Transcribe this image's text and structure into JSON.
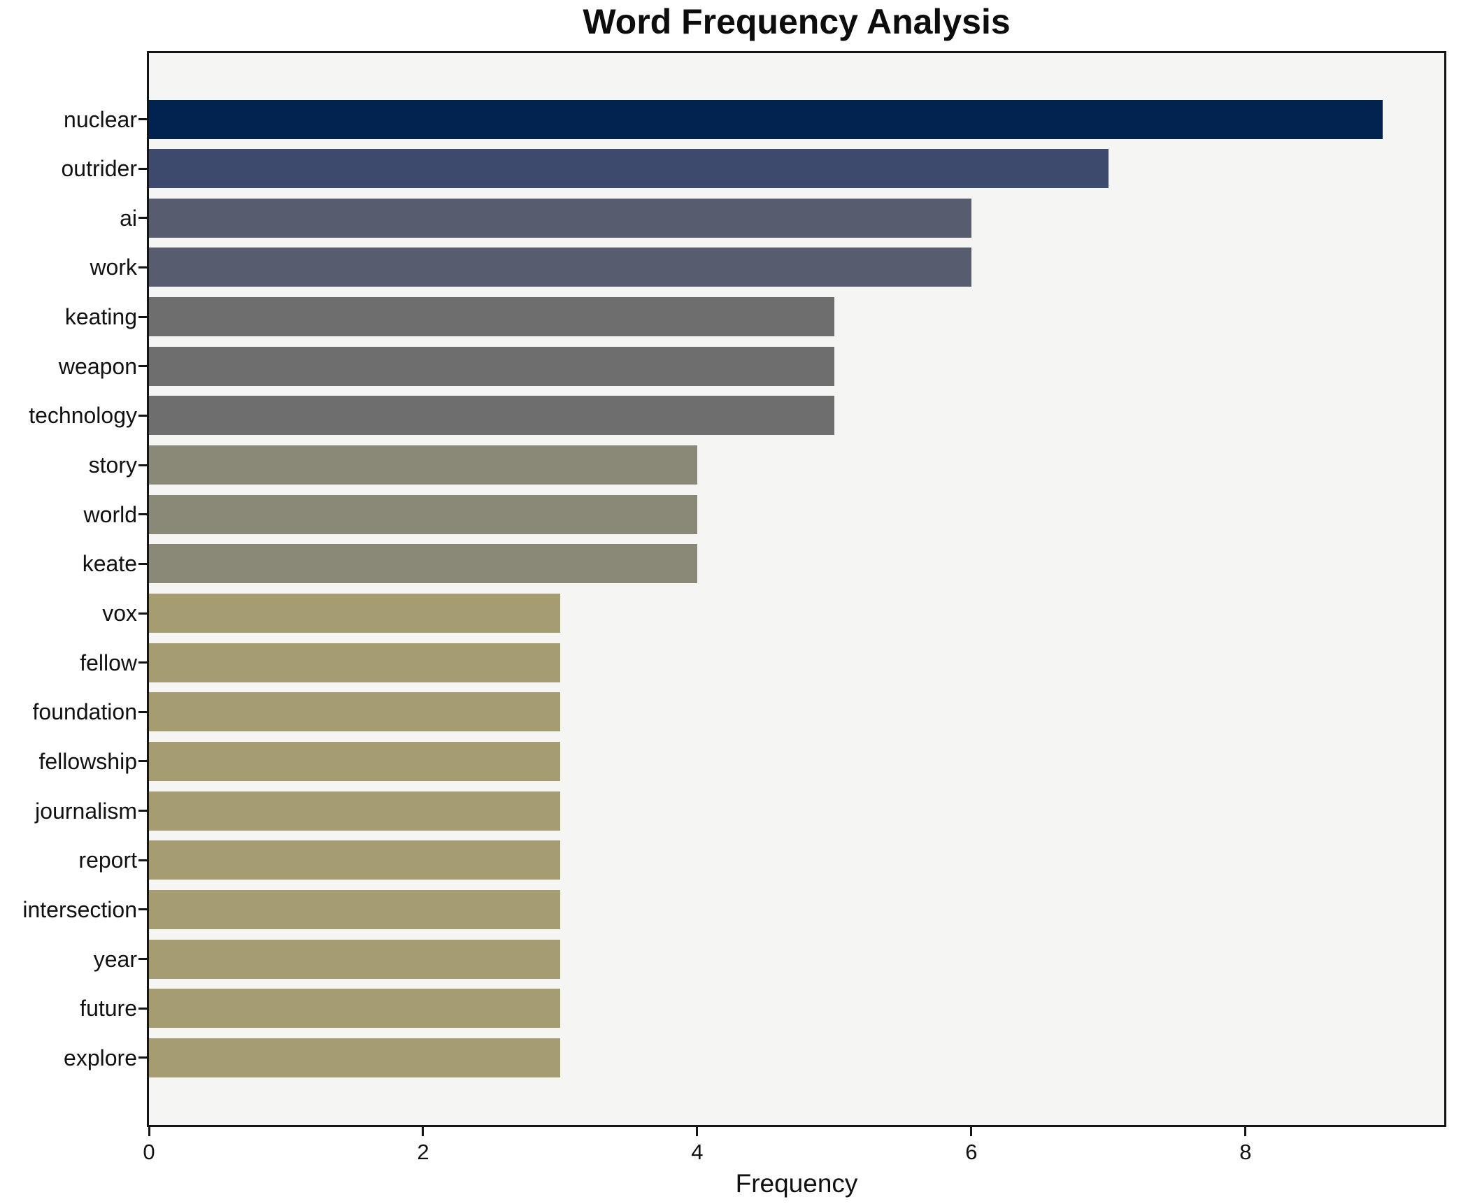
{
  "chart_data": {
    "type": "bar",
    "orientation": "horizontal",
    "title": "Word Frequency Analysis",
    "xlabel": "Frequency",
    "ylabel": "",
    "categories": [
      "nuclear",
      "outrider",
      "ai",
      "work",
      "keating",
      "weapon",
      "technology",
      "story",
      "world",
      "keate",
      "vox",
      "fellow",
      "foundation",
      "fellowship",
      "journalism",
      "report",
      "intersection",
      "year",
      "future",
      "explore"
    ],
    "values": [
      9,
      7,
      6,
      6,
      5,
      5,
      5,
      4,
      4,
      4,
      3,
      3,
      3,
      3,
      3,
      3,
      3,
      3,
      3,
      3
    ],
    "bar_colors": [
      "#02234f",
      "#3d4a6e",
      "#575c6e",
      "#575c6e",
      "#6e6e6f",
      "#6e6e6f",
      "#6e6e6f",
      "#8a8877",
      "#8a8877",
      "#8a8877",
      "#a59c72",
      "#a59c72",
      "#a59c72",
      "#a59c72",
      "#a59c72",
      "#a59c72",
      "#a59c72",
      "#a59c72",
      "#a59c72",
      "#a59c72"
    ],
    "xticks": [
      0,
      2,
      4,
      6,
      8
    ],
    "xlim": [
      0,
      9.45
    ],
    "grid": false,
    "legend": null,
    "plot_background": "#f5f5f3",
    "figure_background": "#ffffff",
    "spine_color": "#141414",
    "text_color": "#111111"
  }
}
